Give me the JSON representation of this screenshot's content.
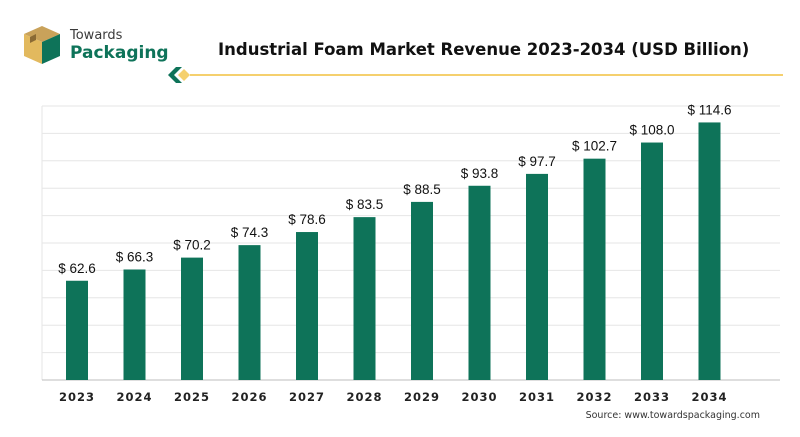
{
  "brand": {
    "line1": "Towards",
    "line2": "Packaging"
  },
  "colors": {
    "bar": "#0e7359",
    "accent": "#f5d06e",
    "grid": "#e6e6e6"
  },
  "source_text": "Source: www.towardspackaging.com",
  "chart_data": {
    "type": "bar",
    "title": "Industrial Foam Market Revenue 2023-2034 (USD Billion)",
    "xlabel": "",
    "ylabel": "",
    "categories": [
      "2023",
      "2024",
      "2025",
      "2026",
      "2027",
      "2028",
      "2029",
      "2030",
      "2031",
      "2032",
      "2033",
      "2034"
    ],
    "values": [
      62.6,
      66.3,
      70.2,
      74.3,
      78.6,
      83.5,
      88.5,
      93.8,
      97.7,
      102.7,
      108.0,
      114.6
    ],
    "value_labels": [
      "$ 62.6",
      "$ 66.3",
      "$ 70.2",
      "$ 74.3",
      "$ 78.6",
      "$ 83.5",
      "$ 88.5",
      "$ 93.8",
      "$ 97.7",
      "$ 102.7",
      "$ 108.0",
      "$ 114.6"
    ],
    "ylim": [
      30,
      120
    ],
    "grid": true,
    "legend": "none"
  }
}
